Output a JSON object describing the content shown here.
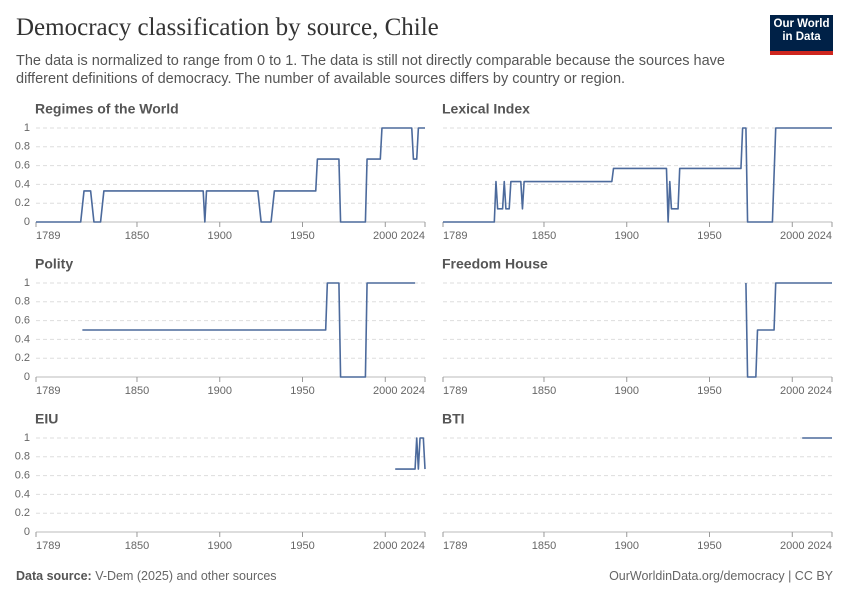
{
  "header": {
    "title": "Democracy classification by source, Chile",
    "subtitle": "The data is normalized to range from 0 to 1. The data is still not directly comparable because the sources have different definitions of democracy. The number of available sources differs by country or region.",
    "logo": "Our World in Data"
  },
  "chart_data": [
    {
      "type": "line",
      "title": "Regimes of the World",
      "color": "#4c6a9c",
      "x": [
        1789,
        1816,
        1818,
        1822,
        1824,
        1828,
        1830,
        1890,
        1891,
        1892,
        1923,
        1925,
        1931,
        1933,
        1958,
        1959,
        1972,
        1973,
        1988,
        1989,
        1997,
        1998,
        2016,
        2017,
        2019,
        2020,
        2024
      ],
      "values": [
        0,
        0,
        0.33,
        0.33,
        0,
        0,
        0.33,
        0.33,
        0,
        0.33,
        0.33,
        0,
        0,
        0.33,
        0.33,
        0.67,
        0.67,
        0,
        0,
        0.67,
        0.67,
        1,
        1,
        0.67,
        0.67,
        1,
        1
      ],
      "xlim": [
        1789,
        2024
      ],
      "xticks": [
        1789,
        1850,
        1900,
        1950,
        2000,
        2024
      ],
      "ylim": [
        0,
        1
      ],
      "yticks": [
        0,
        0.2,
        0.4,
        0.6,
        0.8,
        1
      ],
      "ytick_labels": true,
      "grid": true
    },
    {
      "type": "line",
      "title": "Lexical Index",
      "color": "#4c6a9c",
      "x": [
        1789,
        1820,
        1821,
        1822,
        1825,
        1826,
        1827,
        1829,
        1830,
        1836,
        1837,
        1838,
        1891,
        1892,
        1924,
        1925,
        1926,
        1927,
        1931,
        1932,
        1969,
        1970,
        1972,
        1973,
        1988,
        1990,
        2024
      ],
      "values": [
        0,
        0,
        0.43,
        0.14,
        0.14,
        0.43,
        0.14,
        0.14,
        0.43,
        0.43,
        0.14,
        0.43,
        0.43,
        0.57,
        0.57,
        0,
        0.43,
        0.14,
        0.14,
        0.57,
        0.57,
        1,
        1,
        0,
        0,
        1,
        1
      ],
      "xlim": [
        1789,
        2024
      ],
      "xticks": [
        1789,
        1850,
        1900,
        1950,
        2000,
        2024
      ],
      "ylim": [
        0,
        1
      ],
      "yticks": [
        0,
        0.2,
        0.4,
        0.6,
        0.8,
        1
      ],
      "ytick_labels": false,
      "grid": true
    },
    {
      "type": "line",
      "title": "Polity",
      "color": "#4c6a9c",
      "x": [
        1817,
        1964,
        1965,
        1972,
        1973,
        1988,
        1989,
        2018
      ],
      "values": [
        0.5,
        0.5,
        1,
        1,
        0,
        0,
        1,
        1
      ],
      "xlim": [
        1789,
        2024
      ],
      "xticks": [
        1789,
        1850,
        1900,
        1950,
        2000,
        2024
      ],
      "ylim": [
        0,
        1
      ],
      "yticks": [
        0,
        0.2,
        0.4,
        0.6,
        0.8,
        1
      ],
      "ytick_labels": true,
      "grid": true
    },
    {
      "type": "line",
      "title": "Freedom House",
      "color": "#4c6a9c",
      "x": [
        1972,
        1973,
        1978,
        1979,
        1989,
        1990,
        2024
      ],
      "values": [
        1,
        0,
        0,
        0.5,
        0.5,
        1,
        1
      ],
      "xlim": [
        1789,
        2024
      ],
      "xticks": [
        1789,
        1850,
        1900,
        1950,
        2000,
        2024
      ],
      "ylim": [
        0,
        1
      ],
      "yticks": [
        0,
        0.2,
        0.4,
        0.6,
        0.8,
        1
      ],
      "ytick_labels": false,
      "grid": true
    },
    {
      "type": "line",
      "title": "EIU",
      "color": "#4c6a9c",
      "x": [
        2006,
        2018,
        2019,
        2020,
        2021,
        2023,
        2024
      ],
      "values": [
        0.67,
        0.67,
        1,
        0.67,
        1,
        1,
        0.67
      ],
      "xlim": [
        1789,
        2024
      ],
      "xticks": [
        1789,
        1850,
        1900,
        1950,
        2000,
        2024
      ],
      "ylim": [
        0,
        1
      ],
      "yticks": [
        0,
        0.2,
        0.4,
        0.6,
        0.8,
        1
      ],
      "ytick_labels": true,
      "grid": true
    },
    {
      "type": "line",
      "title": "BTI",
      "color": "#4c6a9c",
      "x": [
        2006,
        2024
      ],
      "values": [
        1,
        1
      ],
      "xlim": [
        1789,
        2024
      ],
      "xticks": [
        1789,
        1850,
        1900,
        1950,
        2000,
        2024
      ],
      "ylim": [
        0,
        1
      ],
      "yticks": [
        0,
        0.2,
        0.4,
        0.6,
        0.8,
        1
      ],
      "ytick_labels": false,
      "grid": true
    }
  ],
  "footer": {
    "source_label": "Data source:",
    "source": "V-Dem (2025) and other sources",
    "url": "OurWorldinData.org/democracy | CC BY"
  }
}
